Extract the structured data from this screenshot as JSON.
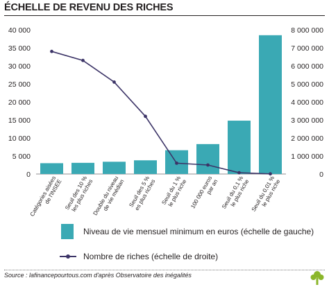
{
  "title": "ÉCHELLE DE REVENU DES RICHES",
  "source": "Source : lafinancepourtous.com d'après Observatoire des inégalités",
  "chart_data": {
    "type": "bar",
    "categories": [
      "Catégories aisées de l'INSEE",
      "Seuil des 10 % les plus riches",
      "Double du niveau de vie médian",
      "Seuil des 5 % es plus riches",
      "Seuil du 1 % le plus riche",
      "100 000 euros par an",
      "Seuil du 0,1 % le plus riche",
      "Seuil du 0,01 % le plus riche"
    ],
    "category_lines": [
      [
        "Catégories aisées",
        "de l'INSEE"
      ],
      [
        "Seuil des 10 %",
        "les plus riches"
      ],
      [
        "Double du niveau",
        "de vie médian"
      ],
      [
        "Seuil des 5 %",
        "es plus riches"
      ],
      [
        "Seuil du 1 %",
        "le plus riche"
      ],
      [
        "100 000 euros",
        "par an"
      ],
      [
        "Seuil du 0,1 %",
        "le plus riche"
      ],
      [
        "Seuil du 0,01 %",
        "le plus riche"
      ]
    ],
    "series": [
      {
        "name": "Niveau de vie mensuel minimum en euros (échelle de gauche)",
        "type": "bar",
        "axis": "left",
        "color": "#3aa9b4",
        "values": [
          3000,
          3100,
          3400,
          3800,
          6600,
          8300,
          14800,
          38500
        ]
      },
      {
        "name": "Nombre de riches (échelle de droite)",
        "type": "line",
        "axis": "right",
        "color": "#3c3467",
        "values": [
          6800000,
          6300000,
          5100000,
          3200000,
          600000,
          500000,
          70000,
          7000
        ]
      }
    ],
    "left_axis": {
      "min": 0,
      "max": 40000,
      "ticks": [
        "0",
        "5 000",
        "10 000",
        "15 000",
        "20 000",
        "25 000",
        "30 000",
        "35 000",
        "40 000"
      ]
    },
    "right_axis": {
      "min": 0,
      "max": 8000000,
      "ticks": [
        "0",
        "1 000 000",
        "2 000 000",
        "3 000 000",
        "4 000 000",
        "5 000 000",
        "6 000 000",
        "7 000 000",
        "8 000 000"
      ]
    },
    "grid": false,
    "legend_position": "bottom"
  }
}
